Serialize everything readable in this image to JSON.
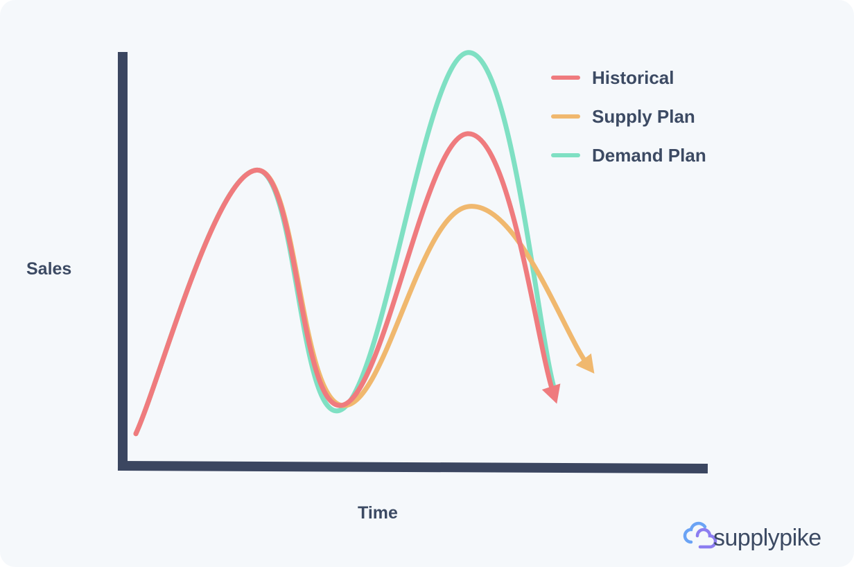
{
  "chart_data": {
    "type": "line",
    "title": "",
    "xlabel": "Time",
    "ylabel": "Sales",
    "legend_position": "top-right",
    "grid": false,
    "series": [
      {
        "name": "Historical",
        "color": "#ef7b7e",
        "x": [
          0.0,
          0.21,
          0.36,
          0.58,
          0.73
        ],
        "y": [
          0.05,
          0.7,
          0.12,
          0.79,
          0.15
        ],
        "end_arrow": true
      },
      {
        "name": "Supply Plan",
        "color": "#f0b86e",
        "x": [
          0.0,
          0.21,
          0.36,
          0.58,
          0.79
        ],
        "y": [
          0.05,
          0.7,
          0.12,
          0.61,
          0.22
        ],
        "end_arrow": true
      },
      {
        "name": "Demand Plan",
        "color": "#7fe0c3",
        "x": [
          0.0,
          0.21,
          0.36,
          0.58,
          0.73
        ],
        "y": [
          0.05,
          0.7,
          0.11,
          0.99,
          0.17
        ],
        "end_arrow": false
      }
    ]
  },
  "brand": {
    "name": "supplypike",
    "icon": "cloud-link-icon"
  }
}
